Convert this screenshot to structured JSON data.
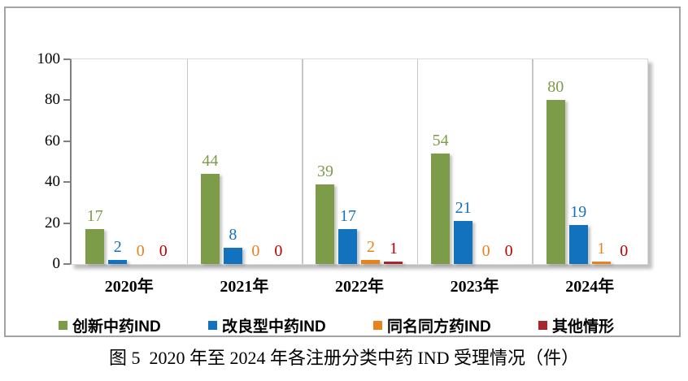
{
  "caption": "图 5  2020 年至 2024 年各注册分类中药 IND 受理情况（件）",
  "colors": {
    "axis": "#7f7f7f",
    "separator": "#c6c6c6",
    "frame_border": "#a3a3a3",
    "background": "#ffffff"
  },
  "chart_data": {
    "type": "bar",
    "title": "图 5  2020 年至 2024 年各注册分类中药 IND 受理情况（件）",
    "categories": [
      "2020年",
      "2021年",
      "2022年",
      "2023年",
      "2024年"
    ],
    "series": [
      {
        "name": "创新中药IND",
        "color": "#7D9C49",
        "label_color": "#7D9C49",
        "values": [
          17,
          44,
          39,
          54,
          80
        ]
      },
      {
        "name": "改良型中药IND",
        "color": "#1272BD",
        "label_color": "#1272BD",
        "values": [
          2,
          8,
          17,
          21,
          19
        ]
      },
      {
        "name": "同名同方药IND",
        "color": "#E8821F",
        "label_color": "#E8821F",
        "values": [
          0,
          0,
          2,
          0,
          1
        ]
      },
      {
        "name": "其他情形",
        "color": "#A6262B",
        "label_color": "#C00000",
        "values": [
          0,
          0,
          1,
          0,
          0
        ]
      }
    ],
    "xlabel": "",
    "ylabel": "",
    "ylim": [
      0,
      100
    ],
    "yticks": [
      0,
      20,
      40,
      60,
      80,
      100
    ],
    "grid": "vertical-group-separators",
    "legend_position": "bottom",
    "data_labels": true
  }
}
